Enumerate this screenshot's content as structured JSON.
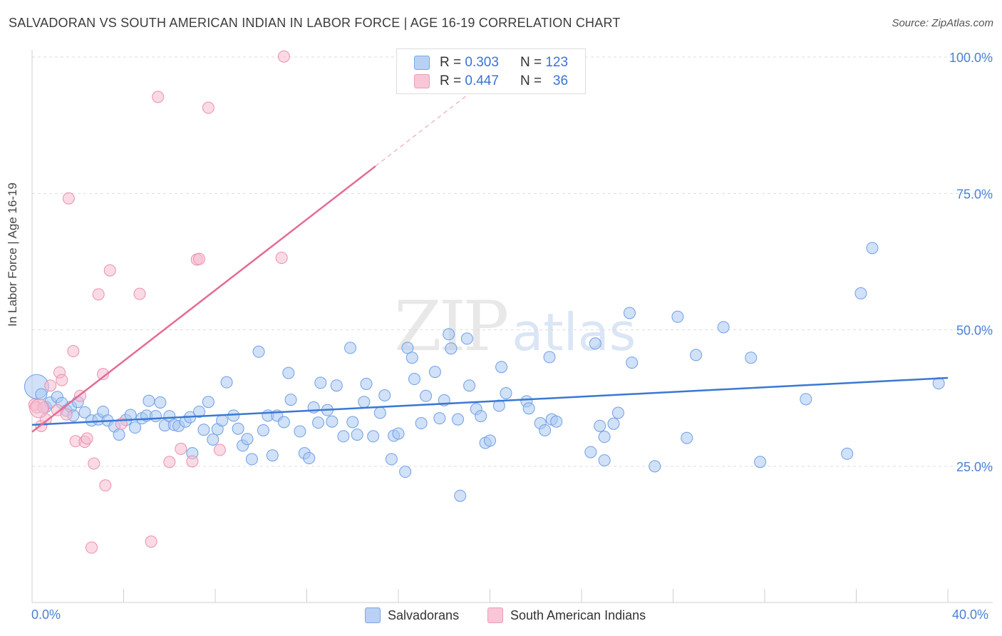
{
  "title": "SALVADORAN VS SOUTH AMERICAN INDIAN IN LABOR FORCE | AGE 16-19 CORRELATION CHART",
  "source": "Source: ZipAtlas.com",
  "watermark": {
    "zip": "ZIP",
    "atlas": "atlas"
  },
  "legend_top": {
    "rows": [
      {
        "r_label": "R =",
        "r_value": "0.303",
        "n_label": "N =",
        "n_value": "123"
      },
      {
        "r_label": "R =",
        "r_value": "0.447",
        "n_label": "N =",
        "n_value": "36"
      }
    ]
  },
  "legend_bottom": {
    "series1": "Salvadorans",
    "series2": "South American Indians"
  },
  "colors": {
    "blue_fill": "#a9c8f3",
    "blue_stroke": "#6f9fe4",
    "blue_line": "#3a78d4",
    "pink_fill": "#f6bcd0",
    "pink_stroke": "#ea8fb0",
    "pink_line": "#e46c93",
    "tick_text": "#4a7fd4",
    "grid": "#dddddd"
  },
  "chart_data": {
    "type": "scatter",
    "title": "SALVADORAN VS SOUTH AMERICAN INDIAN IN LABOR FORCE | AGE 16-19 CORRELATION CHART",
    "xlabel": "",
    "ylabel": "In Labor Force | Age 16-19",
    "xlim": [
      0,
      40
    ],
    "ylim": [
      0,
      103
    ],
    "x_tick_labels": [
      "0.0%",
      "40.0%"
    ],
    "y_ticks": [
      25,
      50,
      75,
      100
    ],
    "y_tick_labels": [
      "25.0%",
      "50.0%",
      "75.0%",
      "100.0%"
    ],
    "grid": true,
    "legend_position": "bottom",
    "series": [
      {
        "name": "Salvadorans",
        "r": 0.303,
        "n": 123,
        "trend": {
          "x0": 0,
          "y0": 32.6,
          "x1": 40,
          "y1": 41.2
        },
        "points": [
          [
            0.2,
            39.6
          ],
          [
            0.4,
            38.2
          ],
          [
            0.6,
            35.9
          ],
          [
            0.8,
            36.7
          ],
          [
            1.1,
            37.7
          ],
          [
            1.3,
            36.6
          ],
          [
            1.5,
            35.2
          ],
          [
            1.7,
            35.9
          ],
          [
            1.8,
            34.3
          ],
          [
            2.0,
            36.8
          ],
          [
            2.3,
            34.9
          ],
          [
            2.6,
            33.4
          ],
          [
            2.9,
            33.6
          ],
          [
            3.1,
            35.0
          ],
          [
            3.3,
            33.4
          ],
          [
            3.6,
            32.3
          ],
          [
            3.8,
            30.8
          ],
          [
            4.1,
            33.5
          ],
          [
            4.3,
            34.4
          ],
          [
            4.5,
            32.1
          ],
          [
            4.8,
            33.8
          ],
          [
            5.0,
            34.3
          ],
          [
            5.1,
            37.0
          ],
          [
            5.4,
            34.2
          ],
          [
            5.6,
            36.7
          ],
          [
            5.8,
            32.5
          ],
          [
            6.0,
            34.2
          ],
          [
            6.2,
            32.6
          ],
          [
            6.4,
            32.4
          ],
          [
            6.7,
            33.2
          ],
          [
            6.9,
            34.0
          ],
          [
            7.0,
            27.4
          ],
          [
            7.3,
            35.0
          ],
          [
            7.5,
            31.7
          ],
          [
            7.7,
            36.8
          ],
          [
            7.9,
            29.9
          ],
          [
            8.1,
            31.8
          ],
          [
            8.3,
            33.4
          ],
          [
            8.5,
            40.4
          ],
          [
            8.8,
            34.3
          ],
          [
            9.0,
            31.9
          ],
          [
            9.2,
            28.8
          ],
          [
            9.4,
            30.0
          ],
          [
            9.6,
            26.3
          ],
          [
            9.9,
            46.0
          ],
          [
            10.1,
            31.6
          ],
          [
            10.3,
            34.3
          ],
          [
            10.5,
            27.0
          ],
          [
            10.7,
            34.3
          ],
          [
            11.0,
            33.1
          ],
          [
            11.2,
            42.1
          ],
          [
            11.3,
            37.2
          ],
          [
            11.7,
            31.4
          ],
          [
            11.9,
            27.4
          ],
          [
            12.1,
            26.5
          ],
          [
            12.3,
            35.8
          ],
          [
            12.5,
            33.0
          ],
          [
            12.6,
            40.3
          ],
          [
            12.9,
            35.3
          ],
          [
            13.1,
            33.2
          ],
          [
            13.3,
            39.8
          ],
          [
            13.6,
            30.5
          ],
          [
            13.9,
            46.7
          ],
          [
            14.0,
            33.1
          ],
          [
            14.2,
            30.8
          ],
          [
            14.5,
            36.8
          ],
          [
            14.6,
            40.1
          ],
          [
            14.9,
            30.5
          ],
          [
            15.2,
            34.8
          ],
          [
            15.4,
            38.0
          ],
          [
            15.7,
            26.3
          ],
          [
            15.8,
            30.6
          ],
          [
            16.0,
            31.0
          ],
          [
            16.3,
            24.0
          ],
          [
            16.4,
            46.7
          ],
          [
            16.6,
            44.9
          ],
          [
            16.7,
            41.0
          ],
          [
            17.0,
            32.9
          ],
          [
            17.2,
            37.9
          ],
          [
            17.6,
            42.3
          ],
          [
            17.8,
            33.8
          ],
          [
            18.0,
            37.1
          ],
          [
            18.2,
            49.2
          ],
          [
            18.3,
            46.6
          ],
          [
            18.6,
            33.6
          ],
          [
            18.7,
            19.6
          ],
          [
            19.0,
            48.4
          ],
          [
            19.1,
            39.8
          ],
          [
            19.4,
            35.5
          ],
          [
            19.6,
            34.2
          ],
          [
            19.8,
            29.3
          ],
          [
            20.0,
            29.7
          ],
          [
            20.4,
            36.1
          ],
          [
            20.5,
            43.2
          ],
          [
            20.7,
            38.4
          ],
          [
            21.6,
            36.9
          ],
          [
            21.7,
            35.6
          ],
          [
            22.2,
            32.9
          ],
          [
            22.4,
            31.6
          ],
          [
            22.6,
            45.0
          ],
          [
            22.7,
            33.6
          ],
          [
            22.9,
            33.2
          ],
          [
            24.4,
            27.6
          ],
          [
            24.6,
            47.5
          ],
          [
            24.8,
            32.4
          ],
          [
            25.0,
            30.4
          ],
          [
            25.0,
            26.1
          ],
          [
            25.4,
            32.8
          ],
          [
            25.6,
            34.8
          ],
          [
            26.1,
            53.1
          ],
          [
            26.2,
            44.0
          ],
          [
            27.2,
            25.0
          ],
          [
            28.2,
            52.4
          ],
          [
            28.6,
            30.2
          ],
          [
            29.0,
            45.4
          ],
          [
            30.2,
            50.5
          ],
          [
            31.4,
            44.9
          ],
          [
            31.8,
            25.8
          ],
          [
            33.8,
            37.3
          ],
          [
            35.6,
            27.3
          ],
          [
            36.2,
            56.7
          ],
          [
            36.7,
            65.0
          ],
          [
            39.6,
            40.2
          ]
        ]
      },
      {
        "name": "South American Indians",
        "r": 0.447,
        "n": 36,
        "trend": {
          "x0": 0,
          "y0": 31.3,
          "x1": 15,
          "y1": 80.0
        },
        "trend_extension": {
          "x0": 15,
          "y0": 80.0,
          "x1": 20.6,
          "y1": 98.2
        },
        "points": [
          [
            0.1,
            36.3
          ],
          [
            0.2,
            35.8
          ],
          [
            0.4,
            32.4
          ],
          [
            0.5,
            35.8
          ],
          [
            0.6,
            33.6
          ],
          [
            0.8,
            39.8
          ],
          [
            1.1,
            35.3
          ],
          [
            1.2,
            42.2
          ],
          [
            1.3,
            40.8
          ],
          [
            1.5,
            34.5
          ],
          [
            1.6,
            74.1
          ],
          [
            1.8,
            46.1
          ],
          [
            1.9,
            29.6
          ],
          [
            2.1,
            37.9
          ],
          [
            2.3,
            29.5
          ],
          [
            2.4,
            30.1
          ],
          [
            2.6,
            10.1
          ],
          [
            2.7,
            25.5
          ],
          [
            2.9,
            56.5
          ],
          [
            3.1,
            41.9
          ],
          [
            3.2,
            21.5
          ],
          [
            3.4,
            60.9
          ],
          [
            3.9,
            32.8
          ],
          [
            4.7,
            56.6
          ],
          [
            5.2,
            11.2
          ],
          [
            5.5,
            92.7
          ],
          [
            6.0,
            25.8
          ],
          [
            6.5,
            28.2
          ],
          [
            7.0,
            25.9
          ],
          [
            7.2,
            62.9
          ],
          [
            7.3,
            63.0
          ],
          [
            7.7,
            90.7
          ],
          [
            8.2,
            28.0
          ],
          [
            10.9,
            63.2
          ],
          [
            11.0,
            100.1
          ],
          [
            0.3,
            35.6
          ]
        ]
      }
    ]
  }
}
